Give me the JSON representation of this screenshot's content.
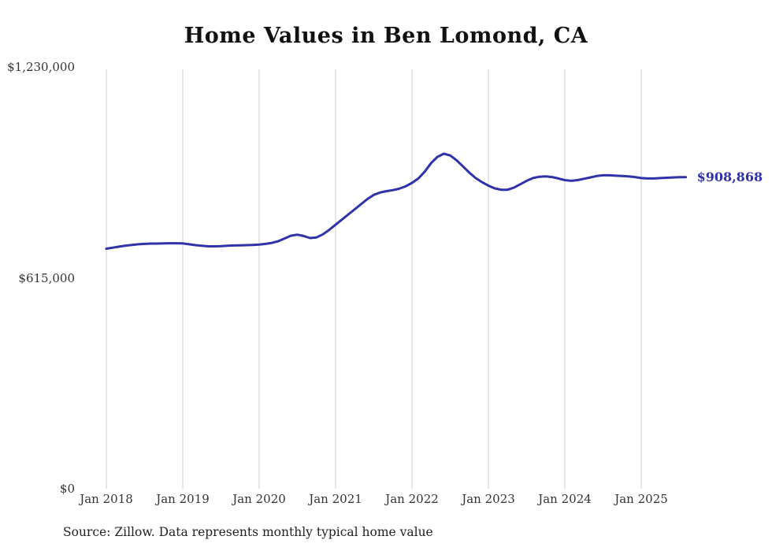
{
  "title": "Home Values in Ben Lomond, CA",
  "source_note": "Source: Zillow. Data represents monthly typical home value",
  "end_label": "$908,868",
  "colors": {
    "line": "#2f32a8",
    "grid": "#cccccc",
    "text": "#333333",
    "background": "#ffffff"
  },
  "chart_data": {
    "type": "line",
    "title": "Home Values in Ben Lomond, CA",
    "xlabel": "",
    "ylabel": "",
    "ylim": [
      0,
      1230000
    ],
    "grid": "vertical-only",
    "legend": "none",
    "y_ticks": [
      {
        "value": 1230000,
        "label": "$1,230,000"
      },
      {
        "value": 615000,
        "label": "$615,000"
      },
      {
        "value": 0,
        "label": "$0"
      }
    ],
    "x_ticks": [
      "Jan 2018",
      "Jan 2019",
      "Jan 2020",
      "Jan 2021",
      "Jan 2022",
      "Jan 2023",
      "Jan 2024",
      "Jan 2025"
    ],
    "x_start": "2018-01",
    "x_interval": "monthly",
    "end_value": 908868,
    "series": [
      {
        "name": "Typical home value",
        "values": [
          700000,
          703000,
          706000,
          709000,
          711000,
          713000,
          714000,
          715000,
          715000,
          715500,
          716000,
          716000,
          715500,
          713000,
          710500,
          708500,
          707000,
          707000,
          707500,
          708500,
          709500,
          710000,
          710500,
          711000,
          712000,
          714000,
          717000,
          722000,
          730000,
          738000,
          741000,
          737000,
          731000,
          733000,
          742000,
          755000,
          770000,
          785000,
          800000,
          815000,
          830000,
          845000,
          857000,
          864000,
          868000,
          871000,
          875000,
          882000,
          892000,
          905000,
          925000,
          950000,
          968000,
          977000,
          972000,
          958000,
          940000,
          922000,
          906000,
          894000,
          884000,
          876000,
          872000,
          872000,
          878000,
          888000,
          898000,
          906000,
          910000,
          911000,
          909000,
          905000,
          900000,
          898000,
          900000,
          904000,
          908000,
          912000,
          914000,
          914000,
          913000,
          912000,
          911000,
          909000,
          906000,
          905000,
          905000,
          906000,
          907000,
          908000,
          908500,
          908868
        ]
      }
    ]
  }
}
